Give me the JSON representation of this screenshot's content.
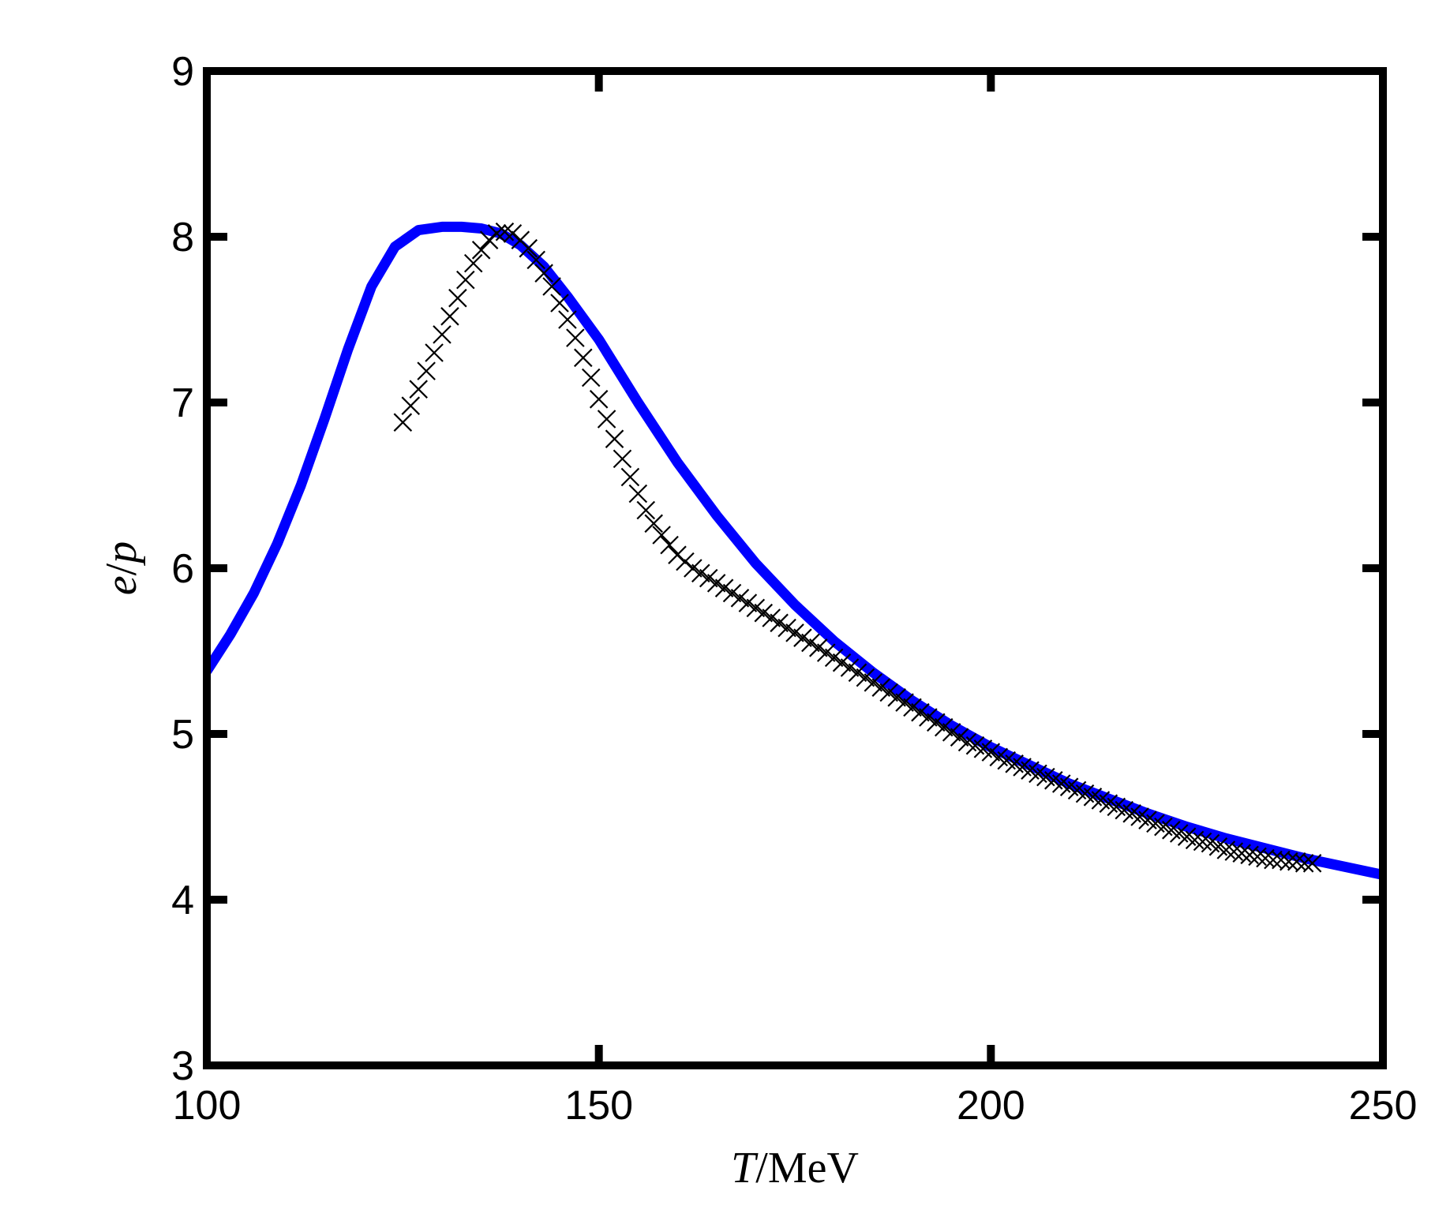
{
  "chart_data": {
    "type": "line",
    "xlabel": "T/MeV",
    "ylabel": "e/p",
    "xlim": [
      100,
      250
    ],
    "ylim": [
      3,
      9
    ],
    "x_ticks": [
      "100",
      "150",
      "200",
      "250"
    ],
    "y_ticks": [
      "3",
      "4",
      "5",
      "6",
      "7",
      "8",
      "9"
    ],
    "grid": false,
    "series": [
      {
        "style": "line",
        "color": "#0000ff",
        "x": [
          100,
          103,
          106,
          109,
          112,
          115,
          118,
          121,
          124,
          127,
          130,
          132.5,
          135,
          137.5,
          140,
          143,
          146,
          150,
          155,
          160,
          165,
          170,
          175,
          180,
          185,
          190,
          195,
          200,
          205,
          210,
          215,
          220,
          225,
          230,
          235,
          240,
          245,
          250
        ],
        "y": [
          5.38,
          5.6,
          5.85,
          6.15,
          6.5,
          6.9,
          7.32,
          7.7,
          7.94,
          8.04,
          8.06,
          8.06,
          8.05,
          8.02,
          7.95,
          7.82,
          7.64,
          7.38,
          7.0,
          6.64,
          6.32,
          6.03,
          5.78,
          5.56,
          5.37,
          5.2,
          5.05,
          4.92,
          4.81,
          4.7,
          4.61,
          4.52,
          4.44,
          4.37,
          4.31,
          4.25,
          4.2,
          4.15
        ]
      },
      {
        "style": "markers",
        "marker": "x",
        "color": "#000000",
        "x": [
          125,
          126,
          127,
          128,
          129,
          130,
          131,
          132,
          133,
          134,
          135,
          136,
          137,
          138,
          139,
          140,
          141,
          142,
          143,
          144,
          145,
          146,
          147,
          148,
          149,
          150,
          151,
          152,
          153,
          154,
          155,
          156,
          157,
          158,
          159,
          160,
          161,
          162,
          163,
          164,
          165,
          166,
          167,
          168,
          169,
          170,
          171,
          172,
          173,
          174,
          175,
          176,
          177,
          178,
          179,
          180,
          181,
          182,
          183,
          184,
          185,
          186,
          187,
          188,
          189,
          190,
          191,
          192,
          193,
          194,
          195,
          196,
          197,
          198,
          199,
          200,
          201,
          202,
          203,
          204,
          205,
          206,
          207,
          208,
          209,
          210,
          211,
          212,
          213,
          214,
          215,
          216,
          217,
          218,
          219,
          220,
          221,
          222,
          223,
          224,
          225,
          226,
          227,
          228,
          229,
          230,
          231,
          232,
          233,
          234,
          235,
          236,
          237,
          238,
          239,
          240,
          241
        ],
        "y": [
          6.88,
          6.98,
          7.08,
          7.19,
          7.3,
          7.41,
          7.52,
          7.63,
          7.74,
          7.84,
          7.92,
          7.98,
          8.02,
          8.03,
          8.02,
          7.98,
          7.93,
          7.86,
          7.78,
          7.7,
          7.6,
          7.5,
          7.39,
          7.27,
          7.15,
          7.02,
          6.9,
          6.78,
          6.66,
          6.55,
          6.45,
          6.35,
          6.27,
          6.2,
          6.14,
          6.08,
          6.04,
          6.0,
          5.97,
          5.94,
          5.91,
          5.88,
          5.85,
          5.82,
          5.79,
          5.76,
          5.73,
          5.7,
          5.67,
          5.64,
          5.61,
          5.58,
          5.55,
          5.52,
          5.49,
          5.46,
          5.43,
          5.4,
          5.37,
          5.34,
          5.31,
          5.28,
          5.25,
          5.22,
          5.19,
          5.16,
          5.13,
          5.1,
          5.07,
          5.04,
          5.01,
          4.98,
          4.95,
          4.93,
          4.91,
          4.89,
          4.86,
          4.84,
          4.82,
          4.8,
          4.78,
          4.76,
          4.74,
          4.72,
          4.7,
          4.68,
          4.66,
          4.64,
          4.62,
          4.6,
          4.58,
          4.56,
          4.54,
          4.52,
          4.5,
          4.48,
          4.46,
          4.44,
          4.42,
          4.4,
          4.38,
          4.36,
          4.35,
          4.34,
          4.32,
          4.3,
          4.29,
          4.28,
          4.27,
          4.26,
          4.25,
          4.24,
          4.24,
          4.23,
          4.23,
          4.22,
          4.22
        ]
      }
    ]
  }
}
